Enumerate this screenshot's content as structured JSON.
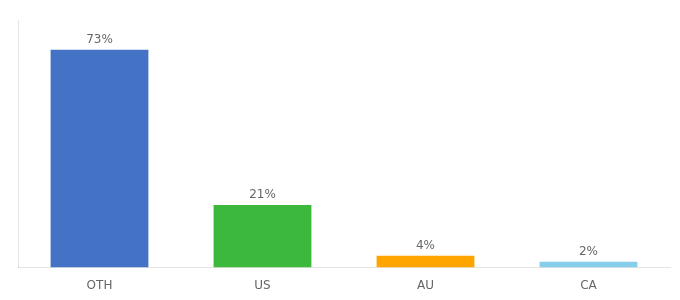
{
  "chart_data": {
    "type": "bar",
    "categories": [
      "OTH",
      "US",
      "AU",
      "CA"
    ],
    "values": [
      73,
      21,
      4,
      2
    ],
    "value_labels": [
      "73%",
      "21%",
      "4%",
      "2%"
    ],
    "colors": [
      "#4472C4",
      "#3CB83C",
      "#FFA500",
      "#87CEEB"
    ],
    "ylim": [
      0,
      83
    ],
    "data_labels": true,
    "tick_labels": "x",
    "grid": false
  }
}
